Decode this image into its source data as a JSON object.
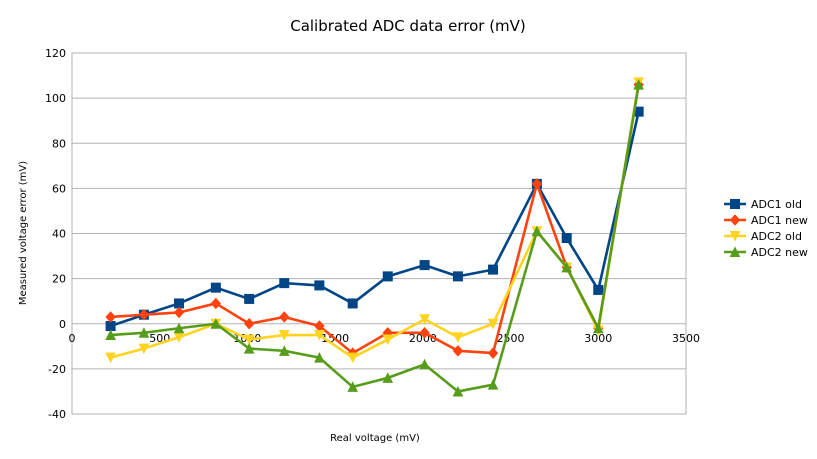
{
  "chart_data": {
    "type": "line",
    "title": "Calibrated ADC data error (mV)",
    "xlabel": "Real voltage (mV)",
    "ylabel": "Measured voltage error (mV)",
    "xlim": [
      0,
      3500
    ],
    "ylim": [
      -40,
      120
    ],
    "xticks": [
      0,
      500,
      1000,
      1500,
      2000,
      2500,
      3000,
      3500
    ],
    "yticks": [
      -40,
      -20,
      0,
      20,
      40,
      60,
      80,
      100,
      120
    ],
    "grid": true,
    "legend_position": "right",
    "series": [
      {
        "name": "ADC1 old",
        "color": "#004586",
        "marker": "square",
        "x": [
          220,
          410,
          610,
          820,
          1010,
          1210,
          1410,
          1600,
          1800,
          2010,
          2200,
          2400,
          2650,
          2820,
          3000,
          3230
        ],
        "y": [
          -1,
          4,
          9,
          16,
          11,
          18,
          17,
          9,
          21,
          26,
          21,
          24,
          62,
          38,
          15,
          94
        ]
      },
      {
        "name": "ADC1 new",
        "color": "#ff420e",
        "marker": "diamond",
        "x": [
          220,
          410,
          610,
          820,
          1010,
          1210,
          1410,
          1600,
          1800,
          2010,
          2200,
          2400,
          2650,
          2820,
          3000,
          3230
        ],
        "y": [
          3,
          4,
          5,
          9,
          0,
          3,
          -1,
          -13,
          -4,
          -4,
          -12,
          -13,
          62,
          25,
          -2,
          106
        ]
      },
      {
        "name": "ADC2 old",
        "color": "#ffd320",
        "marker": "triangle-down",
        "x": [
          220,
          410,
          610,
          820,
          1010,
          1210,
          1410,
          1600,
          1800,
          2010,
          2200,
          2400,
          2650,
          2820,
          3000,
          3230
        ],
        "y": [
          -15,
          -11,
          -6,
          0,
          -7,
          -5,
          -5,
          -15,
          -7,
          2,
          -6,
          0,
          41,
          25,
          -3,
          107
        ]
      },
      {
        "name": "ADC2 new",
        "color": "#579d1c",
        "marker": "triangle-up",
        "x": [
          220,
          410,
          610,
          820,
          1010,
          1210,
          1410,
          1600,
          1800,
          2010,
          2200,
          2400,
          2650,
          2820,
          3000,
          3230
        ],
        "y": [
          -5,
          -4,
          -2,
          0,
          -11,
          -12,
          -15,
          -28,
          -24,
          -18,
          -30,
          -27,
          41,
          25,
          -2,
          106
        ]
      }
    ]
  }
}
